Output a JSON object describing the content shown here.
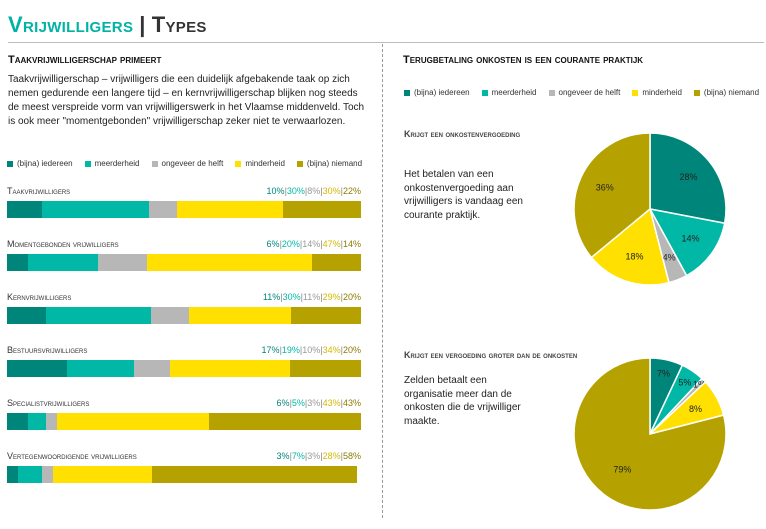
{
  "header": {
    "title_part1": "Vrijwilligers",
    "separator": "|",
    "title_part2": "Types"
  },
  "left": {
    "heading": "Taakvrijwilligerschap primeert",
    "intro": "Taakvrijwilligerschap – vrijwilligers die een duidelijk afgebakende taak op zich nemen gedurende een langere tijd – en kernvrijwilligerschap blijken nog steeds de meest verspreide vorm van vrijwilligerswerk in het Vlaamse middenveld. Toch is ook meer \"momentgebonden\" vrijwilligerschap zeker niet te verwaarlozen."
  },
  "right": {
    "heading": "Terugbetaling onkosten is een courante praktijk",
    "chart1_title": "Krijgt een onkostenvergoeding",
    "chart1_text": "Het betalen van een onkostenvergoeding aan vrijwilligers is vandaag een courante praktijk.",
    "chart2_title": "Krijgt een vergoeding groter dan de onkosten",
    "chart2_text": "Zelden betaalt een organisatie meer dan de onkosten die de vrijwilliger maakte."
  },
  "legend": [
    {
      "label": "(bijna) iedereen",
      "color": "#00857a"
    },
    {
      "label": "meerderheid",
      "color": "#00b8a5"
    },
    {
      "label": "ongeveer de helft",
      "color": "#b7b7b7"
    },
    {
      "label": "minderheid",
      "color": "#ffe000"
    },
    {
      "label": "(bijna) niemand",
      "color": "#b5a200"
    }
  ],
  "chart_data": [
    {
      "type": "bar",
      "stacked": true,
      "orientation": "horizontal",
      "categories": [
        "Taakvrijwilligers",
        "Momentgebonden vrijwilligers",
        "Kernvrijwilligers",
        "Bestuursvrijwilligers",
        "Specialistvrijwilligers",
        "Vertegenwoordigende vrijwilligers"
      ],
      "series": [
        {
          "name": "(bijna) iedereen",
          "values": [
            10,
            6,
            11,
            17,
            6,
            3
          ]
        },
        {
          "name": "meerderheid",
          "values": [
            30,
            20,
            30,
            19,
            5,
            7
          ]
        },
        {
          "name": "ongeveer de helft",
          "values": [
            8,
            14,
            11,
            10,
            3,
            3
          ]
        },
        {
          "name": "minderheid",
          "values": [
            30,
            47,
            29,
            34,
            43,
            28
          ]
        },
        {
          "name": "(bijna) niemand",
          "values": [
            22,
            14,
            20,
            20,
            43,
            58
          ]
        }
      ],
      "xlim": [
        0,
        100
      ]
    },
    {
      "type": "pie",
      "title": "Krijgt een onkostenvergoeding",
      "labels": [
        "(bijna) iedereen",
        "meerderheid",
        "ongeveer de helft",
        "minderheid",
        "(bijna) niemand"
      ],
      "values": [
        28,
        14,
        4,
        18,
        36
      ]
    },
    {
      "type": "pie",
      "title": "Krijgt een vergoeding groter dan de onkosten",
      "labels": [
        "(bijna) iedereen",
        "meerderheid",
        "ongeveer de helft",
        "minderheid",
        "(bijna) niemand"
      ],
      "values": [
        7,
        5,
        1,
        8,
        79
      ]
    }
  ]
}
